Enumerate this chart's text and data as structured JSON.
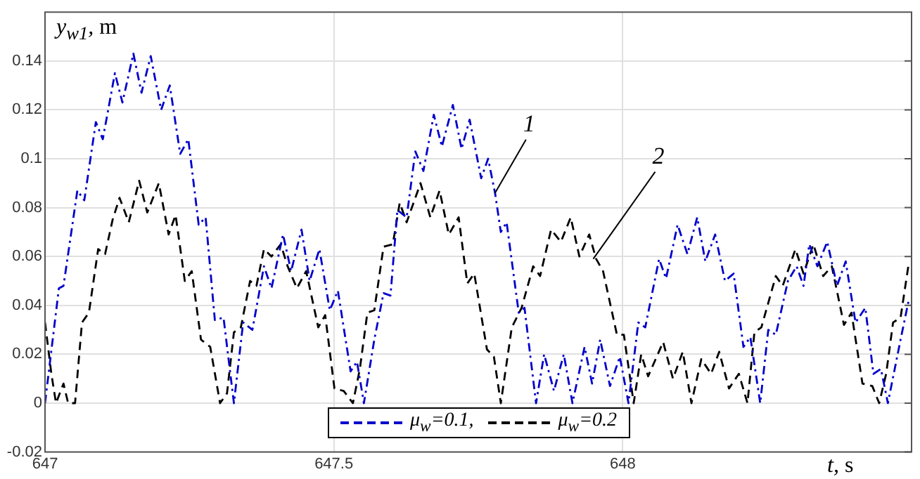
{
  "chart_data": {
    "type": "line",
    "ylabel": "y$_{w1}$, m",
    "xlabel": "t, s",
    "xlim": [
      647,
      648.5
    ],
    "xticks": [
      647,
      647.5,
      648
    ],
    "ylim": [
      -0.02,
      0.16
    ],
    "yticks": [
      -0.02,
      0,
      0.02,
      0.04,
      0.06,
      0.08,
      0.1,
      0.12,
      0.14
    ],
    "grid": true,
    "legend": "bottom",
    "marker": "none",
    "annotations": [
      {
        "text": "1",
        "x": 647.779,
        "y": 0.086
      },
      {
        "text": "2",
        "x": 647.949,
        "y": 0.059
      }
    ],
    "series": [
      {
        "name": "μ$_{w}$=0.1,",
        "color": "#0000cc",
        "line_style": "dashdot",
        "x": [
          647.0,
          647.024,
          647.032,
          647.056,
          647.068,
          647.088,
          647.1,
          647.121,
          647.134,
          647.153,
          647.167,
          647.183,
          647.201,
          647.216,
          647.234,
          647.248,
          647.266,
          647.278,
          647.294,
          647.309,
          647.327,
          647.343,
          647.359,
          647.379,
          647.392,
          647.412,
          647.426,
          647.444,
          647.458,
          647.475,
          647.493,
          647.507,
          647.529,
          647.54,
          647.552,
          647.57,
          647.586,
          647.598,
          647.61,
          647.626,
          647.641,
          647.655,
          647.673,
          647.687,
          647.706,
          647.721,
          647.735,
          647.755,
          647.767,
          647.779,
          647.789,
          647.799,
          647.82,
          647.83,
          647.85,
          647.864,
          647.881,
          647.898,
          647.913,
          647.934,
          647.947,
          647.961,
          647.978,
          647.995,
          648.01,
          648.027,
          648.039,
          648.063,
          648.075,
          648.095,
          648.112,
          648.129,
          648.143,
          648.16,
          648.177,
          648.192,
          648.209,
          648.221,
          648.238,
          648.252,
          648.265,
          648.286,
          648.301,
          648.313,
          648.323,
          648.337,
          648.354,
          648.371,
          648.386,
          648.403,
          648.42,
          648.434,
          648.447,
          648.459,
          648.481,
          648.495
        ],
        "values": [
          0,
          0.047,
          0.048,
          0.087,
          0.083,
          0.115,
          0.108,
          0.135,
          0.123,
          0.143,
          0.127,
          0.142,
          0.12,
          0.13,
          0.102,
          0.108,
          0.073,
          0.076,
          0.034,
          0.035,
          0,
          0.033,
          0.03,
          0.056,
          0.047,
          0.069,
          0.054,
          0.071,
          0.05,
          0.063,
          0.038,
          0.046,
          0.013,
          0.017,
          0,
          0.026,
          0.045,
          0.044,
          0.079,
          0.076,
          0.103,
          0.095,
          0.118,
          0.105,
          0.122,
          0.104,
          0.116,
          0.092,
          0.1,
          0.086,
          0.07,
          0.074,
          0.037,
          0.039,
          0,
          0.02,
          0.005,
          0.02,
          0,
          0.023,
          0.008,
          0.026,
          0.007,
          0.019,
          0,
          0.033,
          0.031,
          0.059,
          0.051,
          0.073,
          0.061,
          0.076,
          0.058,
          0.069,
          0.05,
          0.053,
          0.023,
          0.027,
          0,
          0.03,
          0.028,
          0.05,
          0.056,
          0.048,
          0.065,
          0.056,
          0.066,
          0.048,
          0.058,
          0.033,
          0.039,
          0.012,
          0.014,
          0,
          0.026,
          0.042
        ]
      },
      {
        "name": "μ$_{w}$=0.2",
        "color": "#000000",
        "line_style": "dashed",
        "x": [
          647.0,
          647.011,
          647.019,
          647.032,
          647.04,
          647.052,
          647.064,
          647.076,
          647.092,
          647.104,
          647.117,
          647.129,
          647.145,
          647.163,
          647.177,
          647.197,
          647.214,
          647.226,
          647.242,
          647.254,
          647.27,
          647.286,
          647.303,
          647.315,
          647.327,
          647.339,
          647.355,
          647.366,
          647.379,
          647.392,
          647.408,
          647.42,
          647.436,
          647.452,
          647.473,
          647.485,
          647.501,
          647.517,
          647.533,
          647.545,
          647.558,
          647.57,
          647.586,
          647.602,
          647.614,
          647.626,
          647.65,
          647.667,
          647.683,
          647.699,
          647.716,
          647.731,
          647.743,
          647.765,
          647.777,
          647.789,
          647.808,
          647.825,
          647.845,
          647.857,
          647.876,
          647.893,
          647.91,
          647.925,
          647.942,
          647.954,
          647.966,
          647.99,
          648.002,
          648.019,
          648.032,
          648.044,
          648.07,
          648.087,
          648.104,
          648.119,
          648.136,
          648.153,
          648.167,
          648.184,
          648.201,
          648.216,
          648.228,
          648.24,
          648.265,
          648.277,
          648.299,
          648.313,
          648.33,
          648.347,
          648.362,
          648.383,
          648.396,
          648.415,
          648.432,
          648.444,
          648.456,
          648.468,
          648.481,
          648.495
        ],
        "values": [
          0.033,
          0.012,
          0,
          0.008,
          0,
          0,
          0.033,
          0.037,
          0.063,
          0.061,
          0.075,
          0.084,
          0.074,
          0.091,
          0.078,
          0.09,
          0.069,
          0.077,
          0.05,
          0.054,
          0.026,
          0.023,
          0,
          0.004,
          0.029,
          0.031,
          0.05,
          0.048,
          0.063,
          0.06,
          0.065,
          0.056,
          0.047,
          0.054,
          0.031,
          0.036,
          0.006,
          0.005,
          0,
          0.014,
          0.037,
          0.038,
          0.064,
          0.065,
          0.082,
          0.074,
          0.09,
          0.076,
          0.087,
          0.069,
          0.076,
          0.049,
          0.053,
          0.022,
          0.019,
          0,
          0.031,
          0.039,
          0.056,
          0.052,
          0.071,
          0.066,
          0.076,
          0.06,
          0.069,
          0.059,
          0.054,
          0.028,
          0.028,
          0,
          0.02,
          0.011,
          0.025,
          0.01,
          0.021,
          0,
          0.018,
          0.012,
          0.021,
          0.006,
          0.012,
          0,
          0.029,
          0.031,
          0.052,
          0.048,
          0.063,
          0.053,
          0.065,
          0.052,
          0.056,
          0.032,
          0.037,
          0.008,
          0.007,
          0,
          0.012,
          0.033,
          0.035,
          0.057
        ]
      }
    ]
  }
}
